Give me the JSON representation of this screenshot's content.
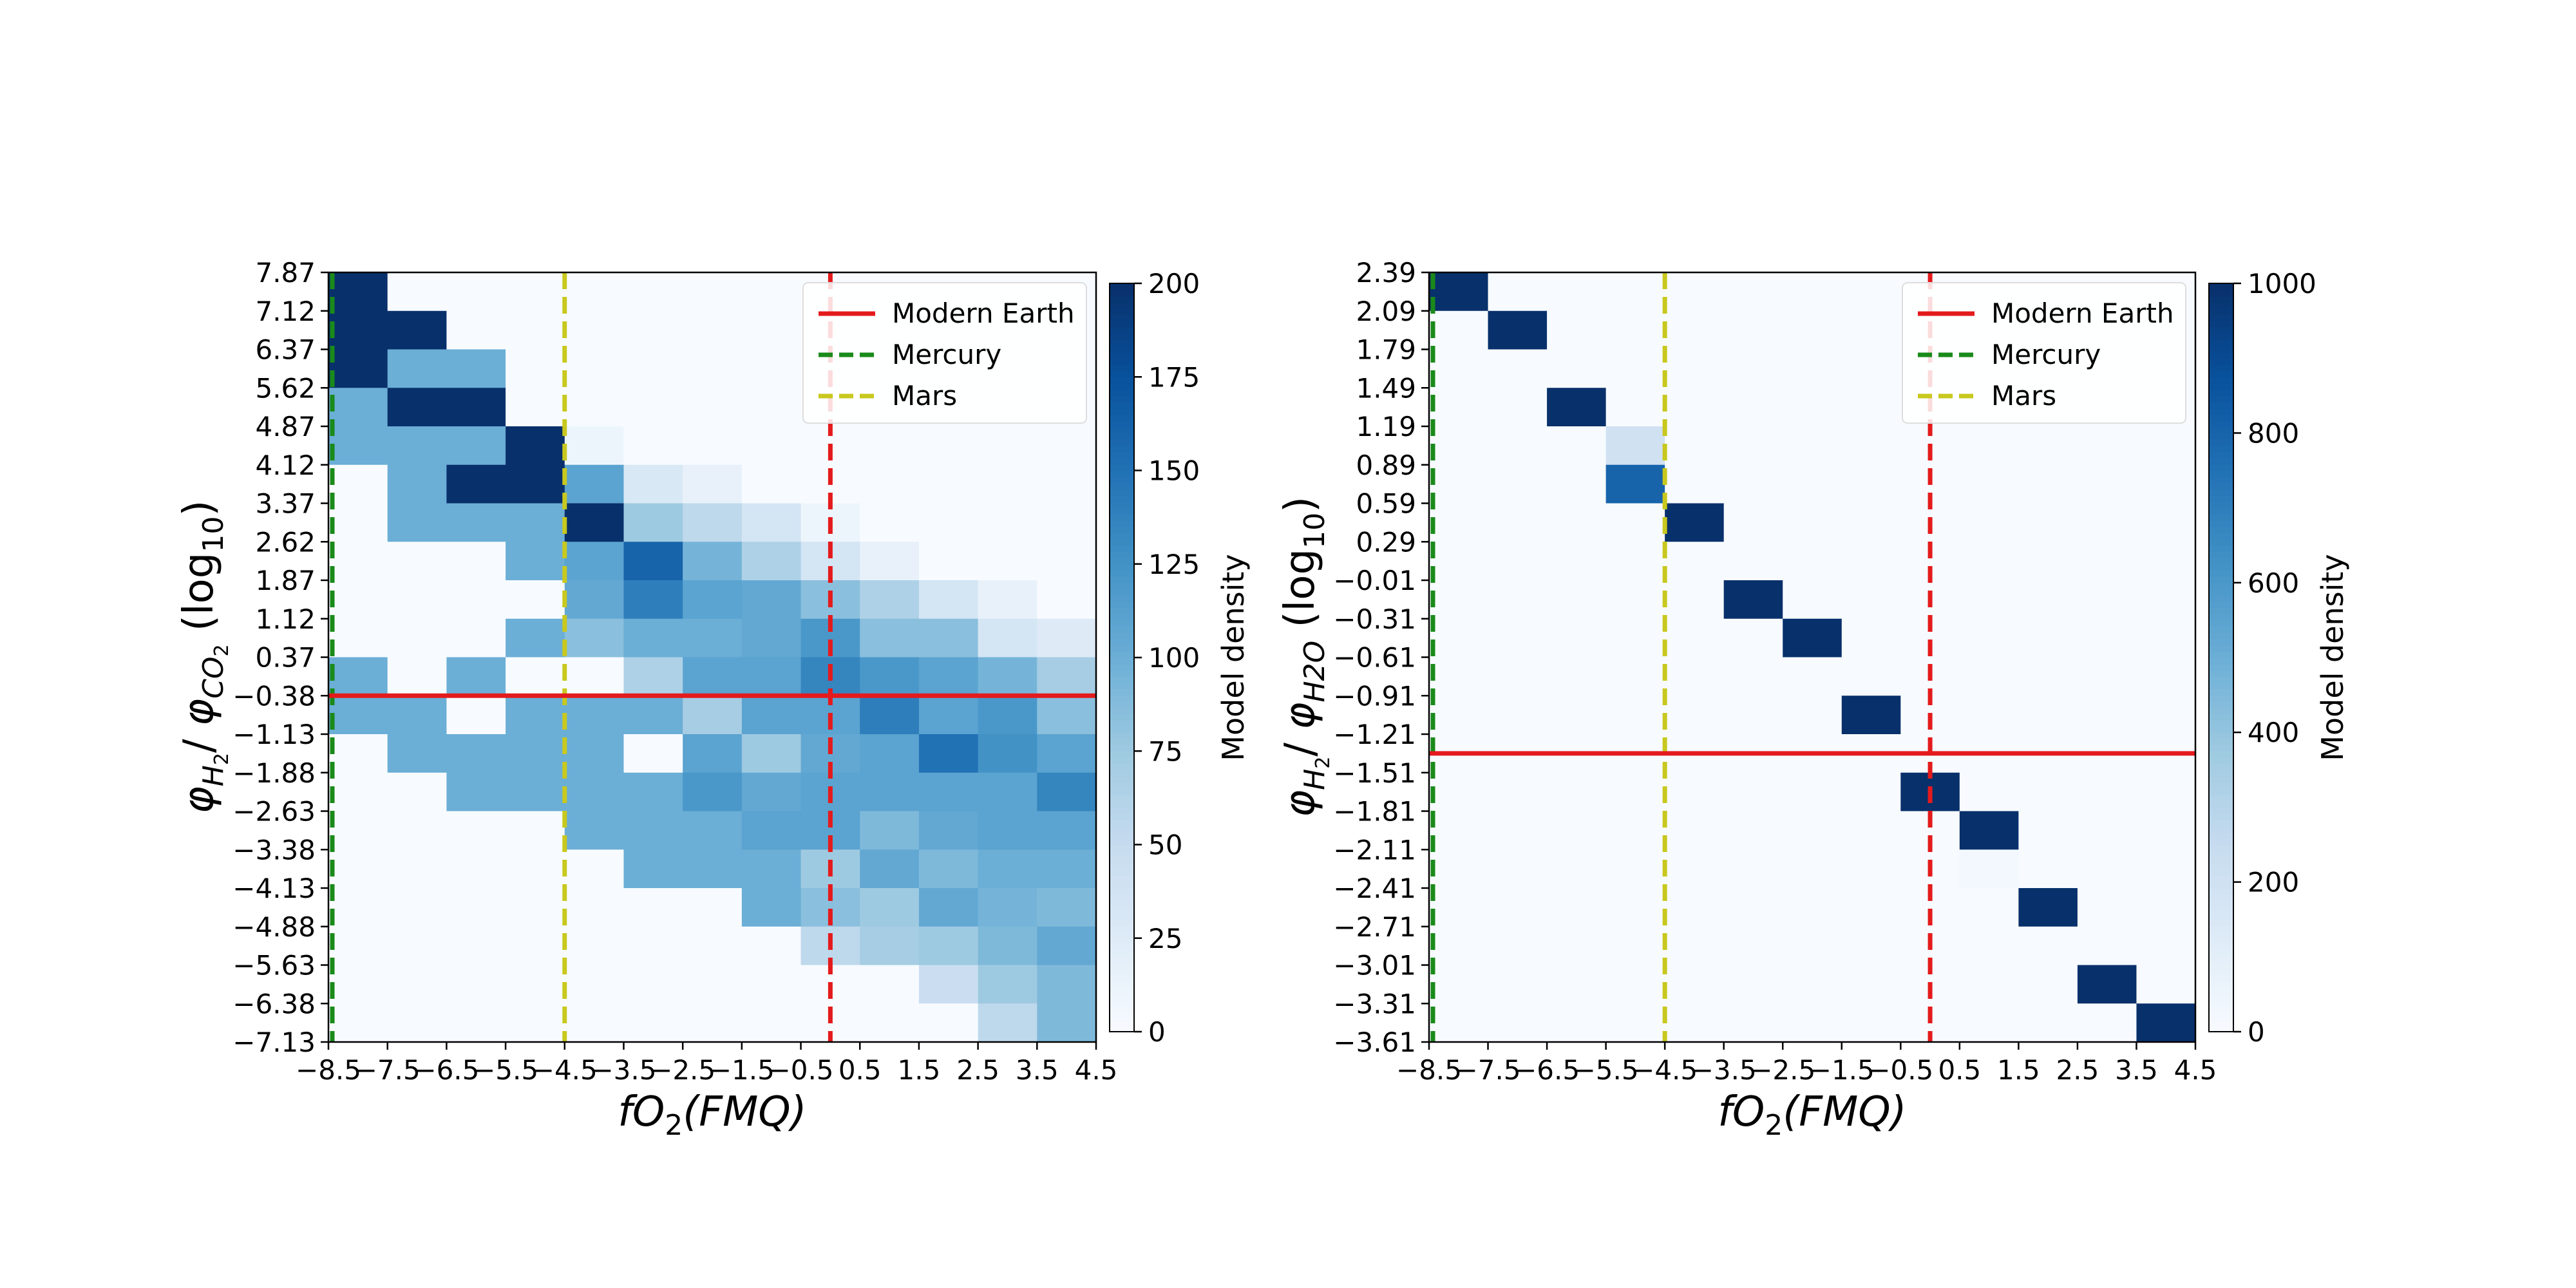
{
  "chart_data": [
    {
      "type": "heatmap",
      "xlabel": "fO₂(FMQ)",
      "ylabel": "φH₂/ φCO₂ (log₁₀)",
      "ylabel_parts": {
        "sym1": "φ",
        "sub1": "H",
        "sub1b": "2",
        "slash": "/ ",
        "sym2": "φ",
        "sub2": "CO",
        "sub2b": "2",
        "unit": "(log",
        "unit_sub": "10",
        "unit_close": ")"
      },
      "x_ticks": [
        "−8.5",
        "−7.5",
        "−6.5",
        "−5.5",
        "−4.5",
        "−3.5",
        "−2.5",
        "−1.5",
        "−0.5",
        "0.5",
        "1.5",
        "2.5",
        "3.5",
        "4.5"
      ],
      "y_ticks": [
        "7.87",
        "7.12",
        "6.37",
        "5.62",
        "4.87",
        "4.12",
        "3.37",
        "2.62",
        "1.87",
        "1.12",
        "0.37",
        "−0.38",
        "−1.13",
        "−1.88",
        "−2.63",
        "−3.38",
        "−4.13",
        "−4.88",
        "−5.63",
        "−6.38",
        "−7.13"
      ],
      "x_range": [
        -8.5,
        4.5
      ],
      "y_range": [
        -7.13,
        7.87
      ],
      "colormap": "Blues",
      "colorbar": {
        "label": "Model density",
        "min": 0,
        "max": 200,
        "ticks": [
          "0",
          "25",
          "50",
          "75",
          "100",
          "125",
          "150",
          "175",
          "200"
        ]
      },
      "legend": {
        "placement": "top-right",
        "entries": [
          {
            "label": "Modern Earth",
            "style": "solid",
            "color": "#e41a1c"
          },
          {
            "label": "Mercury",
            "style": "dashed",
            "color": "#1a8a1a"
          },
          {
            "label": "Mars",
            "style": "dashed",
            "color": "#c8c81e"
          }
        ]
      },
      "reference_lines": {
        "modern_earth_y": -0.38,
        "mercury_x": -8.5,
        "mars_x": -4.5,
        "earth_x": 0.0
      },
      "grid": false,
      "values": [
        [
          200,
          0,
          0,
          0,
          0,
          0,
          0,
          0,
          0,
          0,
          0,
          0,
          0
        ],
        [
          200,
          200,
          0,
          0,
          0,
          0,
          0,
          0,
          0,
          0,
          0,
          0,
          0
        ],
        [
          200,
          100,
          100,
          0,
          0,
          0,
          0,
          0,
          0,
          0,
          0,
          0,
          0
        ],
        [
          100,
          200,
          200,
          0,
          0,
          0,
          0,
          0,
          0,
          0,
          0,
          0,
          0
        ],
        [
          100,
          100,
          100,
          200,
          10,
          0,
          0,
          0,
          0,
          0,
          0,
          0,
          0
        ],
        [
          0,
          100,
          200,
          200,
          110,
          30,
          15,
          0,
          0,
          0,
          0,
          0,
          0
        ],
        [
          0,
          100,
          100,
          100,
          200,
          75,
          55,
          35,
          10,
          0,
          0,
          0,
          0
        ],
        [
          0,
          0,
          0,
          100,
          110,
          160,
          95,
          65,
          35,
          15,
          0,
          0,
          0
        ],
        [
          0,
          0,
          0,
          0,
          105,
          140,
          110,
          105,
          85,
          65,
          35,
          15,
          0
        ],
        [
          0,
          0,
          0,
          100,
          85,
          100,
          100,
          105,
          120,
          85,
          85,
          35,
          25
        ],
        [
          100,
          0,
          100,
          0,
          0,
          65,
          110,
          110,
          135,
          120,
          110,
          95,
          70
        ],
        [
          100,
          100,
          0,
          100,
          100,
          100,
          70,
          110,
          110,
          140,
          110,
          120,
          85
        ],
        [
          0,
          100,
          100,
          100,
          100,
          0,
          110,
          75,
          105,
          110,
          150,
          125,
          110
        ],
        [
          0,
          0,
          100,
          100,
          100,
          100,
          120,
          105,
          110,
          110,
          110,
          110,
          135
        ],
        [
          0,
          0,
          0,
          0,
          100,
          100,
          100,
          110,
          110,
          90,
          105,
          110,
          110
        ],
        [
          0,
          0,
          0,
          0,
          0,
          100,
          100,
          100,
          75,
          105,
          90,
          100,
          100
        ],
        [
          0,
          0,
          0,
          0,
          0,
          0,
          0,
          100,
          85,
          75,
          105,
          95,
          90
        ],
        [
          0,
          0,
          0,
          0,
          0,
          0,
          0,
          0,
          55,
          70,
          75,
          90,
          105
        ],
        [
          0,
          0,
          0,
          0,
          0,
          0,
          0,
          0,
          0,
          0,
          45,
          75,
          90
        ],
        [
          0,
          0,
          0,
          0,
          0,
          0,
          0,
          0,
          0,
          0,
          0,
          55,
          90
        ]
      ]
    },
    {
      "type": "heatmap",
      "xlabel": "fO₂(FMQ)",
      "ylabel": "φH₂/ φH2O (log₁₀)",
      "ylabel_parts": {
        "sym1": "φ",
        "sub1": "H",
        "sub1b": "2",
        "slash": "/ ",
        "sym2": "φ",
        "sub2": "H2O",
        "sub2b": "",
        "unit": "(log",
        "unit_sub": "10",
        "unit_close": ")"
      },
      "x_ticks": [
        "−8.5",
        "−7.5",
        "−6.5",
        "−5.5",
        "−4.5",
        "−3.5",
        "−2.5",
        "−1.5",
        "−0.5",
        "0.5",
        "1.5",
        "2.5",
        "3.5",
        "4.5"
      ],
      "y_ticks": [
        "2.39",
        "2.09",
        "1.79",
        "1.49",
        "1.19",
        "0.89",
        "0.59",
        "0.29",
        "−0.01",
        "−0.31",
        "−0.61",
        "−0.91",
        "−1.21",
        "−1.51",
        "−1.81",
        "−2.11",
        "−2.41",
        "−2.71",
        "−3.01",
        "−3.31",
        "−3.61"
      ],
      "x_range": [
        -8.5,
        4.5
      ],
      "y_range": [
        -3.61,
        2.39
      ],
      "colormap": "Blues",
      "colorbar": {
        "label": "Model density",
        "min": 0,
        "max": 1000,
        "ticks": [
          "0",
          "200",
          "400",
          "600",
          "800",
          "1000"
        ]
      },
      "legend": {
        "placement": "top-right",
        "entries": [
          {
            "label": "Modern Earth",
            "style": "solid",
            "color": "#e41a1c"
          },
          {
            "label": "Mercury",
            "style": "dashed",
            "color": "#1a8a1a"
          },
          {
            "label": "Mars",
            "style": "dashed",
            "color": "#c8c81e"
          }
        ]
      },
      "reference_lines": {
        "modern_earth_y": -1.36,
        "mercury_x": -8.5,
        "mars_x": -4.5,
        "earth_x": 0.0
      },
      "grid": false,
      "values": [
        [
          1000,
          0,
          0,
          0,
          0,
          0,
          0,
          0,
          0,
          0,
          0,
          0,
          0
        ],
        [
          0,
          1000,
          0,
          0,
          0,
          0,
          0,
          0,
          0,
          0,
          0,
          0,
          0
        ],
        [
          0,
          0,
          0,
          0,
          0,
          0,
          0,
          0,
          0,
          0,
          0,
          0,
          0
        ],
        [
          0,
          0,
          1000,
          0,
          0,
          0,
          0,
          0,
          0,
          0,
          0,
          0,
          0
        ],
        [
          0,
          0,
          0,
          200,
          0,
          0,
          0,
          0,
          0,
          0,
          0,
          0,
          0
        ],
        [
          0,
          0,
          0,
          800,
          0,
          0,
          0,
          0,
          0,
          0,
          0,
          0,
          0
        ],
        [
          0,
          0,
          0,
          0,
          1000,
          0,
          0,
          0,
          0,
          0,
          0,
          0,
          0
        ],
        [
          0,
          0,
          0,
          0,
          0,
          0,
          0,
          0,
          0,
          0,
          0,
          0,
          0
        ],
        [
          0,
          0,
          0,
          0,
          0,
          1000,
          0,
          0,
          0,
          0,
          0,
          0,
          0
        ],
        [
          0,
          0,
          0,
          0,
          0,
          0,
          1000,
          0,
          0,
          0,
          0,
          0,
          0
        ],
        [
          0,
          0,
          0,
          0,
          0,
          0,
          0,
          0,
          0,
          0,
          0,
          0,
          0
        ],
        [
          0,
          0,
          0,
          0,
          0,
          0,
          0,
          1000,
          0,
          0,
          0,
          0,
          0
        ],
        [
          0,
          0,
          0,
          0,
          0,
          0,
          0,
          0,
          0,
          0,
          0,
          0,
          0
        ],
        [
          0,
          0,
          0,
          0,
          0,
          0,
          0,
          0,
          1000,
          0,
          0,
          0,
          0
        ],
        [
          0,
          0,
          0,
          0,
          0,
          0,
          0,
          0,
          0,
          1000,
          0,
          0,
          0
        ],
        [
          0,
          0,
          0,
          0,
          0,
          0,
          0,
          0,
          0,
          20,
          0,
          0,
          0
        ],
        [
          0,
          0,
          0,
          0,
          0,
          0,
          0,
          0,
          0,
          0,
          1000,
          0,
          0
        ],
        [
          0,
          0,
          0,
          0,
          0,
          0,
          0,
          0,
          0,
          0,
          0,
          0,
          0
        ],
        [
          0,
          0,
          0,
          0,
          0,
          0,
          0,
          0,
          0,
          0,
          0,
          1000,
          0
        ],
        [
          0,
          0,
          0,
          0,
          0,
          0,
          0,
          0,
          0,
          0,
          0,
          0,
          1000
        ]
      ]
    }
  ]
}
